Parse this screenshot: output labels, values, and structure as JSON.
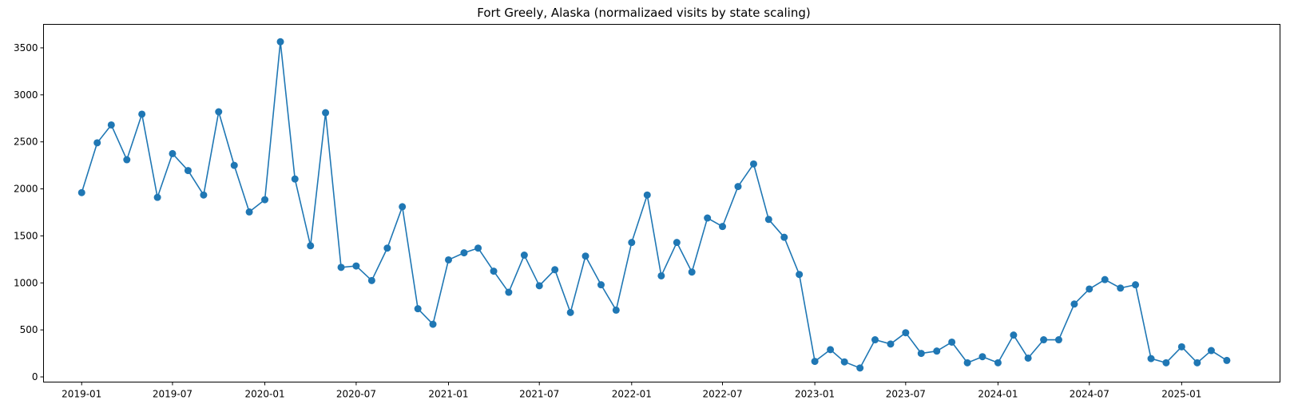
{
  "chart_data": {
    "type": "line",
    "title": "Fort Greely, Alaska (normalizaed visits by state scaling)",
    "xlabel": "",
    "ylabel": "",
    "x_type": "date",
    "xlim": [
      "2018-10-17",
      "2025-07-16"
    ],
    "ylim": [
      -55,
      3750
    ],
    "grid": false,
    "legend": "none",
    "colors": {
      "series": "#1f77b4",
      "axes": "#000000",
      "background": "#ffffff"
    },
    "xticks": [
      {
        "date": "2019-01-01",
        "label": "2019-01"
      },
      {
        "date": "2019-07-01",
        "label": "2019-07"
      },
      {
        "date": "2020-01-01",
        "label": "2020-01"
      },
      {
        "date": "2020-07-01",
        "label": "2020-07"
      },
      {
        "date": "2021-01-01",
        "label": "2021-01"
      },
      {
        "date": "2021-07-01",
        "label": "2021-07"
      },
      {
        "date": "2022-01-01",
        "label": "2022-01"
      },
      {
        "date": "2022-07-01",
        "label": "2022-07"
      },
      {
        "date": "2023-01-01",
        "label": "2023-01"
      },
      {
        "date": "2023-07-01",
        "label": "2023-07"
      },
      {
        "date": "2024-01-01",
        "label": "2024-01"
      },
      {
        "date": "2024-07-01",
        "label": "2024-07"
      },
      {
        "date": "2025-01-01",
        "label": "2025-01"
      }
    ],
    "yticks": [
      {
        "value": 0,
        "label": "0"
      },
      {
        "value": 500,
        "label": "500"
      },
      {
        "value": 1000,
        "label": "1000"
      },
      {
        "value": 1500,
        "label": "1500"
      },
      {
        "value": 2000,
        "label": "2000"
      },
      {
        "value": 2500,
        "label": "2500"
      },
      {
        "value": 3000,
        "label": "3000"
      },
      {
        "value": 3500,
        "label": "3500"
      }
    ],
    "series": [
      {
        "x": [
          "2019-01-01",
          "2019-02-01",
          "2019-03-01",
          "2019-04-01",
          "2019-05-01",
          "2019-06-01",
          "2019-07-01",
          "2019-08-01",
          "2019-09-01",
          "2019-10-01",
          "2019-11-01",
          "2019-12-01",
          "2020-01-01",
          "2020-02-01",
          "2020-03-01",
          "2020-04-01",
          "2020-05-01",
          "2020-06-01",
          "2020-07-01",
          "2020-08-01",
          "2020-09-01",
          "2020-10-01",
          "2020-11-01",
          "2020-12-01",
          "2021-01-01",
          "2021-02-01",
          "2021-03-01",
          "2021-04-01",
          "2021-05-01",
          "2021-06-01",
          "2021-07-01",
          "2021-08-01",
          "2021-09-01",
          "2021-10-01",
          "2021-11-01",
          "2021-12-01",
          "2022-01-01",
          "2022-02-01",
          "2022-03-01",
          "2022-04-01",
          "2022-05-01",
          "2022-06-01",
          "2022-07-01",
          "2022-08-01",
          "2022-09-01",
          "2022-10-01",
          "2022-11-01",
          "2022-12-01",
          "2023-01-01",
          "2023-02-01",
          "2023-03-01",
          "2023-04-01",
          "2023-05-01",
          "2023-06-01",
          "2023-07-01",
          "2023-08-01",
          "2023-09-01",
          "2023-10-01",
          "2023-11-01",
          "2023-12-01",
          "2024-01-01",
          "2024-02-01",
          "2024-03-01",
          "2024-04-01",
          "2024-05-01",
          "2024-06-01",
          "2024-07-01",
          "2024-08-01",
          "2024-09-01",
          "2024-10-01",
          "2024-11-01",
          "2024-12-01",
          "2025-01-01",
          "2025-02-01",
          "2025-03-01",
          "2025-04-01"
        ],
        "y": [
          1960,
          2490,
          2680,
          2310,
          2795,
          1910,
          2375,
          2195,
          1935,
          2820,
          2250,
          1755,
          1885,
          3565,
          2105,
          1395,
          2810,
          1165,
          1180,
          1025,
          1370,
          1810,
          725,
          560,
          1245,
          1320,
          1370,
          1125,
          900,
          1295,
          970,
          1140,
          685,
          1285,
          980,
          710,
          1430,
          1935,
          1075,
          1430,
          1115,
          1690,
          1600,
          2025,
          2265,
          1675,
          1485,
          1090,
          165,
          290,
          160,
          95,
          395,
          350,
          470,
          250,
          275,
          370,
          150,
          215,
          150,
          445,
          200,
          395,
          395,
          775,
          935,
          1035,
          945,
          980,
          195,
          150,
          320,
          150,
          280,
          175
        ]
      }
    ]
  }
}
